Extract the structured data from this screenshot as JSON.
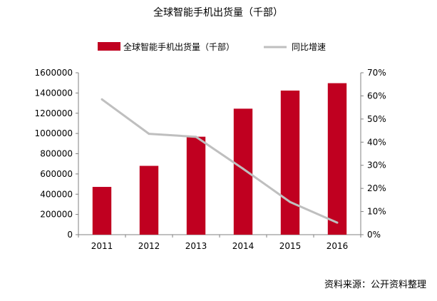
{
  "chart_data": {
    "type": "bar",
    "title": "全球智能手机出货量（千部）",
    "categories": [
      "2011",
      "2012",
      "2013",
      "2014",
      "2015",
      "2016"
    ],
    "series": [
      {
        "name": "全球智能手机出货量（千部）",
        "kind": "bar",
        "axis": "left",
        "color": "#C00020",
        "values": [
          472000,
          680000,
          968000,
          1245000,
          1424000,
          1497000
        ]
      },
      {
        "name": "同比增速",
        "kind": "line",
        "axis": "right",
        "color": "#BFBFBF",
        "values": [
          0.585,
          0.436,
          0.423,
          0.285,
          0.141,
          0.052
        ]
      }
    ],
    "y_left": {
      "lim": [
        0,
        1600000
      ],
      "ticks": [
        "0",
        "200000",
        "400000",
        "600000",
        "800000",
        "1000000",
        "1200000",
        "1400000",
        "1600000"
      ]
    },
    "y_right": {
      "lim": [
        0,
        0.7
      ],
      "ticks": [
        "0%",
        "10%",
        "20%",
        "30%",
        "40%",
        "50%",
        "60%",
        "70%"
      ]
    },
    "legend_position": "top",
    "grid": false,
    "source": "资料来源：公开资料整理"
  }
}
